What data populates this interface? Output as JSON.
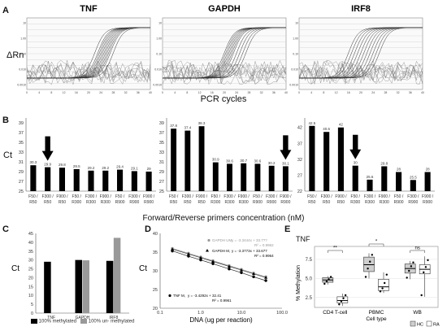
{
  "panel_labels": {
    "A": "A",
    "B": "B",
    "C": "C",
    "D": "D",
    "E": "E"
  },
  "panel_A": {
    "y_label": "ΔRn",
    "x_label": "PCR cycles",
    "x_ticks": [
      "0",
      "2",
      "4",
      "6",
      "8",
      "10",
      "12",
      "14",
      "16",
      "18",
      "20",
      "22",
      "24",
      "26",
      "28",
      "30",
      "32",
      "34",
      "36",
      "38",
      "40"
    ],
    "y_ticks": [
      "10",
      "1.00",
      "0.10",
      "0.010",
      "0.0010"
    ],
    "genes": [
      "TNF",
      "GAPDH",
      "IRF8"
    ]
  },
  "panel_B": {
    "y_label": "Ct",
    "x_label": "Forward/Reverse primers concentration (nM)"
  },
  "panel_C": {
    "y_label": "Ct",
    "legend": {
      "methylated": "100% methylated",
      "unmethylated": "100% un- methylated"
    }
  },
  "panel_D": {
    "y_label": "Ct",
    "x_label": "DNA (ug per reaction)",
    "x_ticks": [
      "0.1",
      "1.0",
      "10.0",
      "100.0"
    ],
    "ann_um_name": "GAPDH UM,",
    "ann_um_eq": "y = -3.3444x + 33.7??",
    "ann_um_r2": "R² = 0.9962",
    "ann_m_name": "GAPDH M,",
    "ann_m_eq": "y = -3.3773x + 33.677",
    "ann_m_r2": "R² = 0.9964",
    "ann_tnf_name": "TNF M,",
    "ann_tnf_eq": "y = -3.4292x + 32.41",
    "ann_tnf_r2": "R² = 0.9961"
  },
  "panel_E": {
    "title": "TNF",
    "y_label": "% Methylation",
    "x_label": "Cell type",
    "sig": [
      "**",
      "*",
      "ns"
    ],
    "legend": {
      "hc": "HC",
      "ra": "RA"
    }
  },
  "chart_data": [
    {
      "type": "bar",
      "panel": "B1",
      "categories": [
        "F50 / R50",
        "F300 / R50",
        "F900 / R50",
        "F50 / R300",
        "F300 / R300",
        "F900 / R300",
        "F50 / R900",
        "F300 / R900",
        "F900 / R900"
      ],
      "values": [
        30.3,
        29.9,
        29.8,
        29.5,
        29.2,
        29.2,
        29.4,
        29.1,
        29
      ],
      "value_labels": [
        "30.3",
        "29.9",
        "29.8",
        "29.5",
        "29.2",
        "29.2",
        "29.4",
        "29.1",
        "29"
      ],
      "y_ticks": [
        25,
        27,
        29,
        31,
        33,
        35,
        37,
        39
      ],
      "ylim": [
        25,
        40
      ],
      "arrow_index": 1
    },
    {
      "type": "bar",
      "panel": "B2",
      "categories": [
        "F50 / R50",
        "F300 / R50",
        "F900 / R50",
        "F50 / R300",
        "F300 / R300",
        "F900 / R300",
        "F50 / R900",
        "F300 / R900",
        "F900 / R900"
      ],
      "values": [
        37.8,
        37.4,
        38.3,
        30.9,
        30.6,
        30.7,
        30.6,
        30.2,
        30.1
      ],
      "value_labels": [
        "37.8",
        "37.4",
        "38.3",
        "30.9",
        "30.6",
        "30.7",
        "30.6",
        "30.2",
        "30.1"
      ],
      "y_ticks": [
        25,
        27,
        29,
        31,
        33,
        35,
        37,
        39
      ],
      "ylim": [
        25,
        40
      ],
      "arrow_index": 8
    },
    {
      "type": "bar",
      "panel": "B3",
      "categories": [
        "F50 / R50",
        "F300 / R50",
        "F900 / R50",
        "F50 / R300",
        "F300 / R300",
        "F900 / R300",
        "F50 / R900",
        "F300 / R900",
        "F900 / R900"
      ],
      "values": [
        42.5,
        40.6,
        42,
        30,
        25.6,
        29.8,
        28,
        25.5,
        28
      ],
      "value_labels": [
        "42.5",
        "40.6",
        "42",
        "30",
        "25.6",
        "29.8",
        "28",
        "25.5",
        "28"
      ],
      "y_ticks": [
        22,
        27,
        32,
        37,
        42
      ],
      "ylim": [
        22,
        45
      ],
      "arrow_index": 3
    },
    {
      "type": "bar",
      "panel": "C",
      "categories": [
        "TNF",
        "GAPDH",
        "IRF8"
      ],
      "series": [
        {
          "name": "100% methylated",
          "values": [
            29,
            30,
            29.5
          ]
        },
        {
          "name": "100% un- methylated",
          "values": [
            null,
            29.8,
            42.5
          ]
        }
      ],
      "y_ticks": [
        0,
        5,
        10,
        15,
        20,
        25,
        30,
        35,
        40,
        45
      ],
      "ylim": [
        0,
        45
      ]
    },
    {
      "type": "scatter",
      "panel": "D",
      "xscale": "log",
      "y_ticks": [
        "40",
        "35",
        "30",
        "25",
        "20"
      ],
      "xlim": [
        0.1,
        100
      ],
      "ylim": [
        20,
        40
      ],
      "series": [
        {
          "name": "GAPDH UM",
          "x": [
            0.2,
            0.5,
            1,
            2,
            5,
            10,
            20,
            40
          ],
          "y": [
            36.0,
            34.7,
            33.7,
            32.7,
            31.4,
            30.4,
            29.4,
            28.4
          ]
        },
        {
          "name": "GAPDH M",
          "x": [
            0.2,
            0.5,
            1,
            2,
            5,
            10,
            20,
            40
          ],
          "y": [
            35.8,
            34.5,
            33.5,
            32.5,
            31.2,
            30.2,
            29.2,
            28.2
          ]
        },
        {
          "name": "TNF M",
          "x": [
            0.2,
            0.5,
            1,
            2,
            5,
            10,
            20,
            40
          ],
          "y": [
            35.3,
            33.9,
            32.9,
            31.9,
            30.5,
            29.5,
            28.4,
            27.4
          ]
        }
      ]
    },
    {
      "type": "box",
      "panel": "E",
      "categories": [
        "CD4 T-cell",
        "PBMC",
        "WB"
      ],
      "y_ticks": [
        2.5,
        5.0,
        7.5
      ],
      "y_tick_labels": [
        "2.5",
        "5.0",
        "7.5"
      ],
      "ylim": [
        1.2,
        9.2
      ],
      "groups": [
        {
          "hc": {
            "min": 4.2,
            "q1": 4.5,
            "median": 4.8,
            "q3": 5.1,
            "max": 5.3,
            "points": [
              4.3,
              4.6,
              4.9,
              5.2
            ]
          },
          "ra": {
            "min": 1.4,
            "q1": 1.8,
            "median": 2.1,
            "q3": 2.6,
            "max": 3.0,
            "points": [
              1.6,
              2.0,
              2.4,
              2.8
            ]
          }
        },
        {
          "hc": {
            "min": 5.0,
            "q1": 5.9,
            "median": 6.8,
            "q3": 7.8,
            "max": 8.3,
            "points": [
              5.2,
              6.3,
              7.2,
              8.1
            ]
          },
          "ra": {
            "min": 3.1,
            "q1": 3.4,
            "median": 3.9,
            "q3": 4.9,
            "max": 5.8,
            "points": [
              3.3,
              3.7,
              4.4,
              5.5
            ]
          }
        },
        {
          "hc": {
            "min": 4.9,
            "q1": 5.7,
            "median": 6.3,
            "q3": 6.9,
            "max": 7.3,
            "points": [
              5.1,
              6.0,
              6.6,
              7.1
            ]
          },
          "ra": {
            "min": 2.6,
            "q1": 5.6,
            "median": 6.2,
            "q3": 6.8,
            "max": 7.9,
            "points": [
              2.8,
              5.8,
              6.5,
              7.4
            ]
          }
        }
      ]
    }
  ]
}
